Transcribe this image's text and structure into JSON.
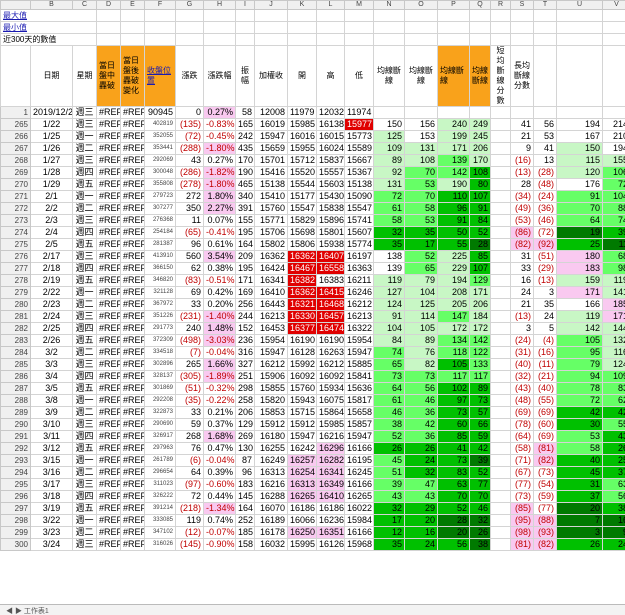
{
  "meta_rows": [
    {
      "label": "最大值"
    },
    {
      "label": "最小值"
    },
    {
      "label": "近300天的數值"
    }
  ],
  "col_letters": [
    "",
    "B",
    "C",
    "D",
    "E",
    "F",
    "G",
    "H",
    "I",
    "J",
    "K",
    "L",
    "M",
    "N",
    "O",
    "P",
    "Q",
    "R",
    "S",
    "T",
    "U",
    "V"
  ],
  "headers": [
    "",
    "日期",
    "星期",
    "當日盤中轟破",
    "當日盤後轟破變化",
    "收盤位置",
    "漲跌",
    "漲跌幅",
    "振幅",
    "加權收",
    "開",
    "高",
    "低",
    "均線斷線",
    "均線斷線",
    "均線斷線",
    "均線斷線",
    "短均斷線分數",
    "長均斷線分數",
    "",
    ""
  ],
  "first_row": {
    "row": "1",
    "date": "2019/12/25",
    "week": "週三",
    "d": "#REF!",
    "e": "#REF!",
    "f": "90945",
    "g": "0",
    "h": "0.27%",
    "i": "58",
    "j": "12008",
    "k": "11979",
    "l": "12032",
    "m": "11974"
  },
  "rows": [
    {
      "r": "265",
      "date": "1/22",
      "wk": "週三",
      "f": "402819",
      "g": "(135)",
      "h": "-0.83%",
      "i": "165",
      "j": "16019",
      "k": "15985",
      "l": "16138",
      "m": "15977",
      "n": "150",
      "o": "156",
      "p": "240",
      "q": "249",
      "s": "41",
      "t": "56",
      "u": "194",
      "v": "214"
    },
    {
      "r": "266",
      "date": "1/25",
      "wk": "週一",
      "f": "352055",
      "g": "(72)",
      "h": "-0.45%",
      "i": "242",
      "j": "15947",
      "k": "16016",
      "l": "16015",
      "m": "15773",
      "n": "125",
      "o": "153",
      "p": "199",
      "q": "245",
      "s": "21",
      "t": "53",
      "u": "167",
      "v": "210"
    },
    {
      "r": "267",
      "date": "1/26",
      "wk": "週二",
      "f": "353441",
      "g": "(288)",
      "h": "-1.80%",
      "i": "435",
      "j": "15659",
      "k": "15955",
      "l": "16024",
      "m": "15589",
      "n": "109",
      "o": "131",
      "p": "171",
      "q": "206",
      "s": "9",
      "t": "41",
      "u": "150",
      "v": "194"
    },
    {
      "r": "268",
      "date": "1/27",
      "wk": "週三",
      "f": "292069",
      "g": "43",
      "h": "0.27%",
      "i": "170",
      "j": "15701",
      "k": "15712",
      "l": "15837",
      "m": "15667",
      "n": "89",
      "o": "108",
      "p": "139",
      "q": "170",
      "s": "(16)",
      "t": "13",
      "u": "115",
      "v": "155"
    },
    {
      "r": "269",
      "date": "1/28",
      "wk": "週四",
      "f": "300048",
      "g": "(286)",
      "h": "-1.82%",
      "i": "190",
      "j": "15416",
      "k": "15520",
      "l": "15557",
      "m": "15367",
      "n": "92",
      "o": "70",
      "p": "142",
      "q": "108",
      "s": "(13)",
      "t": "(28)",
      "u": "120",
      "v": "106"
    },
    {
      "r": "270",
      "date": "1/29",
      "wk": "週五",
      "f": "355808",
      "g": "(278)",
      "h": "-1.80%",
      "i": "465",
      "j": "15138",
      "k": "15544",
      "l": "15603",
      "m": "15138",
      "n": "131",
      "o": "53",
      "p": "190",
      "q": "80",
      "s": "28",
      "t": "(48)",
      "u": "176",
      "v": "72"
    },
    {
      "r": "271",
      "date": "2/1",
      "wk": "週一",
      "f": "279723",
      "g": "272",
      "h": "1.80%",
      "i": "340",
      "j": "15410",
      "k": "15177",
      "l": "15430",
      "m": "15090",
      "n": "72",
      "o": "70",
      "p": "110",
      "q": "107",
      "s": "(34)",
      "t": "(24)",
      "u": "91",
      "v": "104"
    },
    {
      "r": "272",
      "date": "2/2",
      "wk": "週二",
      "f": "307277",
      "g": "350",
      "h": "2.27%",
      "i": "391",
      "j": "15760",
      "k": "15547",
      "l": "15838",
      "m": "15547",
      "n": "61",
      "o": "58",
      "p": "96",
      "q": "91",
      "s": "(49)",
      "t": "(36)",
      "u": "70",
      "v": "88"
    },
    {
      "r": "273",
      "date": "2/3",
      "wk": "週三",
      "f": "276368",
      "g": "11",
      "h": "0.07%",
      "i": "155",
      "j": "15771",
      "k": "15829",
      "l": "15896",
      "m": "15741",
      "n": "58",
      "o": "53",
      "p": "91",
      "q": "84",
      "s": "(53)",
      "t": "(46)",
      "u": "64",
      "v": "74"
    },
    {
      "r": "274",
      "date": "2/4",
      "wk": "週四",
      "f": "254184",
      "g": "(65)",
      "h": "-0.41%",
      "i": "195",
      "j": "15706",
      "k": "15698",
      "l": "15801",
      "m": "15607",
      "n": "32",
      "o": "35",
      "p": "50",
      "q": "52",
      "s": "(86)",
      "t": "(72)",
      "u": "19",
      "v": "39"
    },
    {
      "r": "275",
      "date": "2/5",
      "wk": "週五",
      "f": "281387",
      "g": "96",
      "h": "0.61%",
      "i": "164",
      "j": "15802",
      "k": "15806",
      "l": "15938",
      "m": "15774",
      "n": "35",
      "o": "17",
      "p": "55",
      "q": "28",
      "s": "(82)",
      "t": "(92)",
      "u": "25",
      "v": "11"
    },
    {
      "r": "276",
      "date": "2/17",
      "wk": "週三",
      "f": "413910",
      "g": "560",
      "h": "3.54%",
      "i": "209",
      "j": "16362",
      "k": "16362",
      "l": "16407",
      "m": "16197",
      "n": "138",
      "o": "52",
      "p": "225",
      "q": "85",
      "s": "31",
      "t": "(51)",
      "u": "180",
      "v": "68"
    },
    {
      "r": "277",
      "date": "2/18",
      "wk": "週四",
      "f": "366150",
      "g": "62",
      "h": "0.38%",
      "i": "195",
      "j": "16424",
      "k": "16467",
      "l": "16558",
      "m": "16363",
      "n": "139",
      "o": "65",
      "p": "229",
      "q": "107",
      "s": "33",
      "t": "(29)",
      "u": "183",
      "v": "98"
    },
    {
      "r": "278",
      "date": "2/19",
      "wk": "週五",
      "f": "346820",
      "g": "(83)",
      "h": "-0.51%",
      "i": "171",
      "j": "16341",
      "k": "16382",
      "l": "16383",
      "m": "16211",
      "n": "119",
      "o": "79",
      "p": "194",
      "q": "129",
      "s": "16",
      "t": "(13)",
      "u": "159",
      "v": "119"
    },
    {
      "r": "279",
      "date": "2/22",
      "wk": "週一",
      "f": "321128",
      "g": "69",
      "h": "0.42%",
      "i": "169",
      "j": "16410",
      "k": "16362",
      "l": "16415",
      "m": "16246",
      "n": "127",
      "o": "104",
      "p": "208",
      "q": "171",
      "s": "24",
      "t": "3",
      "u": "171",
      "v": "141"
    },
    {
      "r": "280",
      "date": "2/23",
      "wk": "週二",
      "f": "367972",
      "g": "33",
      "h": "0.20%",
      "i": "256",
      "j": "16443",
      "k": "16321",
      "l": "16468",
      "m": "16212",
      "n": "124",
      "o": "125",
      "p": "205",
      "q": "206",
      "s": "21",
      "t": "35",
      "u": "166",
      "v": "185"
    },
    {
      "r": "281",
      "date": "2/24",
      "wk": "週三",
      "f": "351226",
      "g": "(231)",
      "h": "-1.40%",
      "i": "244",
      "j": "16213",
      "k": "16330",
      "l": "16457",
      "m": "16213",
      "n": "91",
      "o": "114",
      "p": "147",
      "q": "184",
      "s": "(13)",
      "t": "24",
      "u": "119",
      "v": "171"
    },
    {
      "r": "282",
      "date": "2/25",
      "wk": "週四",
      "f": "291773",
      "g": "240",
      "h": "1.48%",
      "i": "152",
      "j": "16453",
      "k": "16377",
      "l": "16474",
      "m": "16322",
      "n": "104",
      "o": "105",
      "p": "172",
      "q": "172",
      "s": "3",
      "t": "5",
      "u": "142",
      "v": "144"
    },
    {
      "r": "283",
      "date": "2/26",
      "wk": "週五",
      "f": "372309",
      "g": "(498)",
      "h": "-3.03%",
      "i": "236",
      "j": "15954",
      "k": "16190",
      "l": "16190",
      "m": "15954",
      "n": "84",
      "o": "89",
      "p": "134",
      "q": "142",
      "s": "(24)",
      "t": "(4)",
      "u": "105",
      "v": "132"
    },
    {
      "r": "284",
      "date": "3/2",
      "wk": "週二",
      "f": "334518",
      "g": "(7)",
      "h": "-0.04%",
      "i": "316",
      "j": "15947",
      "k": "16128",
      "l": "16263",
      "m": "15947",
      "n": "74",
      "o": "76",
      "p": "118",
      "q": "122",
      "s": "(31)",
      "t": "(16)",
      "u": "95",
      "v": "116"
    },
    {
      "r": "285",
      "date": "3/3",
      "wk": "週三",
      "f": "302896",
      "g": "265",
      "h": "1.66%",
      "i": "327",
      "j": "16212",
      "k": "15992",
      "l": "16212",
      "m": "15885",
      "n": "65",
      "o": "82",
      "p": "105",
      "q": "133",
      "s": "(40)",
      "t": "(11)",
      "u": "79",
      "v": "124"
    },
    {
      "r": "286",
      "date": "3/4",
      "wk": "週四",
      "f": "328137",
      "g": "(305)",
      "h": "-1.89%",
      "i": "251",
      "j": "15906",
      "k": "16092",
      "l": "16092",
      "m": "15841",
      "n": "73",
      "o": "73",
      "p": "117",
      "q": "117",
      "s": "(32)",
      "t": "(21)",
      "u": "94",
      "v": "109"
    },
    {
      "r": "287",
      "date": "3/5",
      "wk": "週五",
      "f": "301869",
      "g": "(51)",
      "h": "-0.32%",
      "i": "298",
      "j": "15855",
      "k": "15760",
      "l": "15934",
      "m": "15636",
      "n": "64",
      "o": "56",
      "p": "102",
      "q": "89",
      "s": "(43)",
      "t": "(40)",
      "u": "78",
      "v": "83"
    },
    {
      "r": "288",
      "date": "3/8",
      "wk": "週一",
      "f": "292208",
      "g": "(35)",
      "h": "-0.22%",
      "i": "258",
      "j": "15820",
      "k": "15943",
      "l": "16075",
      "m": "15817",
      "n": "61",
      "o": "46",
      "p": "97",
      "q": "73",
      "s": "(48)",
      "t": "(55)",
      "u": "72",
      "v": "62"
    },
    {
      "r": "289",
      "date": "3/9",
      "wk": "週二",
      "f": "322873",
      "g": "33",
      "h": "0.21%",
      "i": "206",
      "j": "15853",
      "k": "15715",
      "l": "15864",
      "m": "15658",
      "n": "46",
      "o": "36",
      "p": "73",
      "q": "57",
      "s": "(69)",
      "t": "(69)",
      "u": "42",
      "v": "42"
    },
    {
      "r": "290",
      "date": "3/10",
      "wk": "週三",
      "f": "290690",
      "g": "59",
      "h": "0.37%",
      "i": "129",
      "j": "15912",
      "k": "15912",
      "l": "15985",
      "m": "15857",
      "n": "38",
      "o": "42",
      "p": "60",
      "q": "66",
      "s": "(78)",
      "t": "(60)",
      "u": "30",
      "v": "55"
    },
    {
      "r": "291",
      "date": "3/11",
      "wk": "週四",
      "f": "326917",
      "g": "268",
      "h": "1.68%",
      "i": "269",
      "j": "16180",
      "k": "15947",
      "l": "16216",
      "m": "15947",
      "n": "52",
      "o": "36",
      "p": "85",
      "q": "59",
      "s": "(64)",
      "t": "(69)",
      "u": "53",
      "v": "43"
    },
    {
      "r": "292",
      "date": "3/12",
      "wk": "週五",
      "f": "297963",
      "g": "76",
      "h": "0.47%",
      "i": "130",
      "j": "16255",
      "k": "16242",
      "l": "16296",
      "m": "16166",
      "n": "26",
      "o": "26",
      "p": "41",
      "q": "42",
      "s": "(58)",
      "t": "(81)",
      "u": "58",
      "v": "26"
    },
    {
      "r": "293",
      "date": "3/15",
      "wk": "週一",
      "f": "261789",
      "g": "(6)",
      "h": "-0.04%",
      "i": "87",
      "j": "16249",
      "k": "16257",
      "l": "16282",
      "m": "16195",
      "n": "45",
      "o": "24",
      "p": "73",
      "q": "39",
      "s": "(71)",
      "t": "(82)",
      "u": "40",
      "v": "25"
    },
    {
      "r": "294",
      "date": "3/16",
      "wk": "週二",
      "f": "296654",
      "g": "64",
      "h": "0.39%",
      "i": "96",
      "j": "16313",
      "k": "16254",
      "l": "16341",
      "m": "16245",
      "n": "51",
      "o": "32",
      "p": "83",
      "q": "52",
      "s": "(67)",
      "t": "(73)",
      "u": "45",
      "v": "37"
    },
    {
      "r": "295",
      "date": "3/17",
      "wk": "週三",
      "f": "311023",
      "g": "(97)",
      "h": "-0.60%",
      "i": "183",
      "j": "16216",
      "k": "16313",
      "l": "16349",
      "m": "16166",
      "n": "39",
      "o": "47",
      "p": "63",
      "q": "77",
      "s": "(77)",
      "t": "(54)",
      "u": "31",
      "v": "63"
    },
    {
      "r": "296",
      "date": "3/18",
      "wk": "週四",
      "f": "326222",
      "g": "72",
      "h": "0.44%",
      "i": "145",
      "j": "16288",
      "k": "16265",
      "l": "16410",
      "m": "16265",
      "n": "43",
      "o": "43",
      "p": "70",
      "q": "70",
      "s": "(73)",
      "t": "(59)",
      "u": "37",
      "v": "56"
    },
    {
      "r": "297",
      "date": "3/19",
      "wk": "週五",
      "f": "391214",
      "g": "(218)",
      "h": "-1.34%",
      "i": "164",
      "j": "16070",
      "k": "16186",
      "l": "16186",
      "m": "16022",
      "n": "32",
      "o": "29",
      "p": "52",
      "q": "46",
      "s": "(85)",
      "t": "(77)",
      "u": "20",
      "v": "38"
    },
    {
      "r": "298",
      "date": "3/22",
      "wk": "週一",
      "f": "333085",
      "g": "119",
      "h": "0.74%",
      "i": "252",
      "j": "16189",
      "k": "16066",
      "l": "16236",
      "m": "15984",
      "n": "17",
      "o": "20",
      "p": "28",
      "q": "32",
      "s": "(95)",
      "t": "(88)",
      "u": "7",
      "v": "16"
    },
    {
      "r": "299",
      "date": "3/23",
      "wk": "週二",
      "f": "347102",
      "g": "(12)",
      "h": "-0.07%",
      "i": "185",
      "j": "16178",
      "k": "16250",
      "l": "16351",
      "m": "16166",
      "n": "12",
      "o": "16",
      "p": "20",
      "q": "26",
      "s": "(98)",
      "t": "(93)",
      "u": "3",
      "v": "9"
    },
    {
      "r": "300",
      "date": "3/24",
      "wk": "週三",
      "f": "316026",
      "g": "(145)",
      "h": "-0.90%",
      "i": "158",
      "j": "16032",
      "k": "15995",
      "l": "16126",
      "m": "15968",
      "n": "35",
      "o": "24",
      "p": "56",
      "q": "38",
      "s": "(81)",
      "t": "(82)",
      "u": "26",
      "v": "24"
    }
  ],
  "ref": "#REF!",
  "sheet_tabs": "◀ ▶ 工作表1"
}
